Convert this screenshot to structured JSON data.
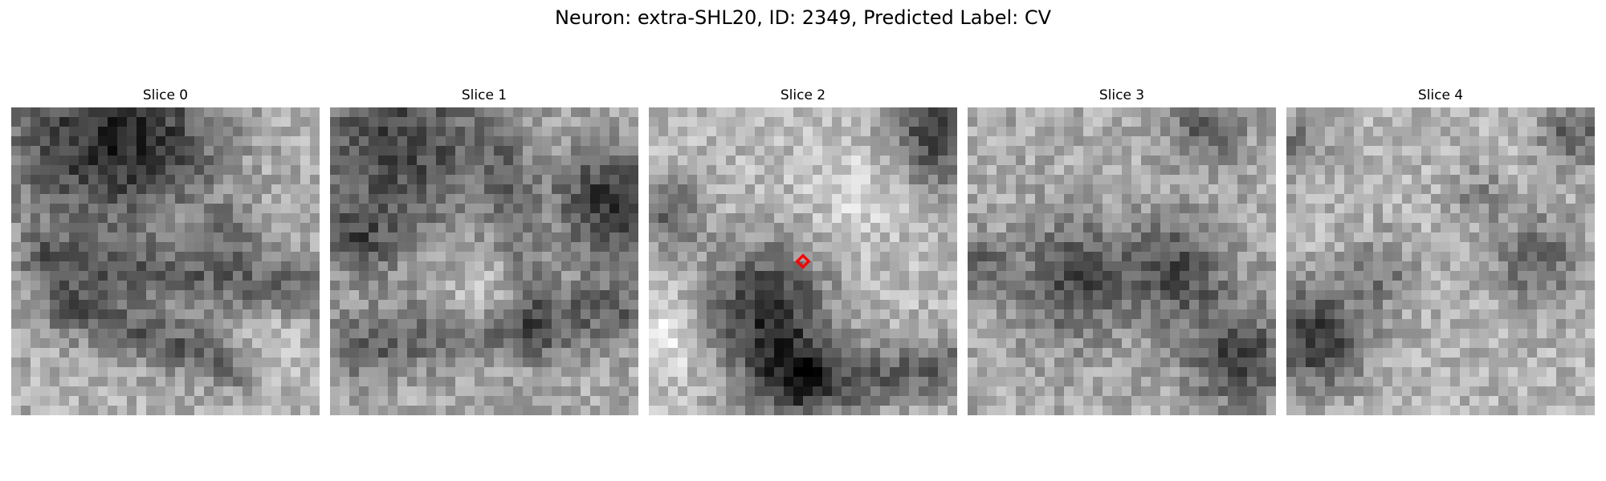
{
  "figure": {
    "title": "Neuron: extra-SHL20, ID: 2349, Predicted Label: CV",
    "marker_color": "#ff0000",
    "colormap": "grayscale"
  },
  "slices": [
    {
      "label": "Slice 0"
    },
    {
      "label": "Slice 1"
    },
    {
      "label": "Slice 2"
    },
    {
      "label": "Slice 3"
    },
    {
      "label": "Slice 4"
    }
  ]
}
